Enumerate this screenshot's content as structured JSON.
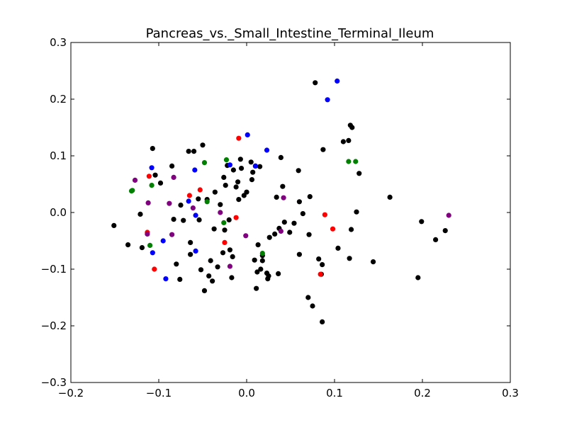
{
  "chart_data": {
    "type": "scatter",
    "title": "Pancreas_vs._Small_Intestine_Terminal_Ileum",
    "xlabel": "",
    "ylabel": "",
    "xlim": [
      -0.2,
      0.3
    ],
    "ylim": [
      -0.3,
      0.3
    ],
    "grid": false,
    "xticks": [
      -0.2,
      -0.1,
      0.0,
      0.1,
      0.2,
      0.3
    ],
    "yticks": [
      -0.3,
      -0.2,
      -0.1,
      0.0,
      0.1,
      0.2,
      0.3
    ],
    "xtick_labels": [
      "−0.2",
      "−0.1",
      "0.0",
      "0.1",
      "0.2",
      "0.3"
    ],
    "ytick_labels": [
      "−0.3",
      "−0.2",
      "−0.1",
      "0.0",
      "0.1",
      "0.2",
      "0.3"
    ],
    "series": [
      {
        "color": "#000000",
        "points": [
          [
            -0.151,
            -0.023
          ],
          [
            -0.135,
            -0.057
          ],
          [
            -0.121,
            -0.003
          ],
          [
            -0.119,
            -0.062
          ],
          [
            -0.107,
            0.113
          ],
          [
            -0.104,
            0.066
          ],
          [
            -0.098,
            0.052
          ],
          [
            -0.085,
            0.082
          ],
          [
            -0.083,
            -0.012
          ],
          [
            -0.08,
            -0.091
          ],
          [
            -0.076,
            -0.118
          ],
          [
            -0.075,
            0.013
          ],
          [
            -0.072,
            -0.014
          ],
          [
            -0.066,
            0.108
          ],
          [
            -0.064,
            -0.053
          ],
          [
            -0.064,
            -0.074
          ],
          [
            -0.06,
            0.108
          ],
          [
            -0.055,
            0.024
          ],
          [
            -0.054,
            -0.013
          ],
          [
            -0.052,
            -0.101
          ],
          [
            -0.05,
            0.119
          ],
          [
            -0.048,
            -0.138
          ],
          [
            -0.045,
            0.023
          ],
          [
            -0.043,
            -0.112
          ],
          [
            -0.041,
            -0.085
          ],
          [
            -0.039,
            -0.121
          ],
          [
            -0.037,
            -0.029
          ],
          [
            -0.036,
            0.036
          ],
          [
            -0.033,
            -0.096
          ],
          [
            -0.03,
            0.014
          ],
          [
            -0.027,
            -0.071
          ],
          [
            -0.026,
            0.062
          ],
          [
            -0.025,
            -0.031
          ],
          [
            -0.024,
            0.048
          ],
          [
            -0.022,
            0.083
          ],
          [
            -0.02,
            -0.013
          ],
          [
            -0.019,
            -0.066
          ],
          [
            -0.017,
            -0.115
          ],
          [
            -0.016,
            -0.078
          ],
          [
            -0.015,
            0.075
          ],
          [
            -0.012,
            0.045
          ],
          [
            -0.01,
            0.054
          ],
          [
            -0.009,
            0.023
          ],
          [
            -0.007,
            0.094
          ],
          [
            -0.006,
            0.078
          ],
          [
            -0.003,
            0.03
          ],
          [
            0.0,
            0.036
          ],
          [
            0.005,
            0.089
          ],
          [
            0.006,
            0.058
          ],
          [
            0.007,
            0.071
          ],
          [
            0.009,
            -0.084
          ],
          [
            0.01,
            0.082
          ],
          [
            0.011,
            -0.134
          ],
          [
            0.012,
            -0.105
          ],
          [
            0.013,
            -0.057
          ],
          [
            0.015,
            0.081
          ],
          [
            0.016,
            -0.1
          ],
          [
            0.018,
            -0.076
          ],
          [
            0.018,
            -0.085
          ],
          [
            0.023,
            -0.107
          ],
          [
            0.024,
            -0.117
          ],
          [
            0.025,
            -0.112
          ],
          [
            0.026,
            -0.044
          ],
          [
            0.032,
            -0.038
          ],
          [
            0.034,
            0.027
          ],
          [
            0.036,
            -0.108
          ],
          [
            0.037,
            -0.028
          ],
          [
            0.039,
            0.097
          ],
          [
            0.041,
            0.046
          ],
          [
            0.043,
            -0.017
          ],
          [
            0.049,
            -0.035
          ],
          [
            0.054,
            -0.019
          ],
          [
            0.059,
            0.074
          ],
          [
            0.06,
            -0.074
          ],
          [
            0.06,
            0.019
          ],
          [
            0.064,
            -0.002
          ],
          [
            0.07,
            -0.15
          ],
          [
            0.071,
            -0.039
          ],
          [
            0.072,
            0.028
          ],
          [
            0.075,
            -0.165
          ],
          [
            0.078,
            0.229
          ],
          [
            0.082,
            -0.082
          ],
          [
            0.085,
            -0.109
          ],
          [
            0.086,
            -0.092
          ],
          [
            0.086,
            -0.193
          ],
          [
            0.087,
            0.111
          ],
          [
            0.104,
            -0.063
          ],
          [
            0.11,
            0.125
          ],
          [
            0.116,
            0.127
          ],
          [
            0.117,
            -0.081
          ],
          [
            0.118,
            0.154
          ],
          [
            0.119,
            -0.03
          ],
          [
            0.12,
            0.15
          ],
          [
            0.125,
            0.001
          ],
          [
            0.128,
            0.069
          ],
          [
            0.144,
            -0.087
          ],
          [
            0.163,
            0.027
          ],
          [
            0.195,
            -0.115
          ],
          [
            0.199,
            -0.016
          ],
          [
            0.215,
            -0.048
          ],
          [
            0.226,
            -0.032
          ]
        ]
      },
      {
        "color": "#0000ff",
        "points": [
          [
            -0.108,
            0.079
          ],
          [
            -0.107,
            -0.071
          ],
          [
            -0.095,
            -0.05
          ],
          [
            -0.092,
            -0.117
          ],
          [
            -0.066,
            0.02
          ],
          [
            -0.059,
            0.075
          ],
          [
            -0.058,
            -0.005
          ],
          [
            -0.058,
            -0.068
          ],
          [
            -0.019,
            0.084
          ],
          [
            0.001,
            0.137
          ],
          [
            0.01,
            0.082
          ],
          [
            0.023,
            0.11
          ],
          [
            0.092,
            0.199
          ],
          [
            0.103,
            0.232
          ]
        ]
      },
      {
        "color": "#ff0000",
        "points": [
          [
            -0.113,
            -0.035
          ],
          [
            -0.111,
            0.064
          ],
          [
            -0.105,
            -0.1
          ],
          [
            -0.065,
            0.03
          ],
          [
            -0.053,
            0.04
          ],
          [
            -0.025,
            -0.053
          ],
          [
            -0.012,
            -0.009
          ],
          [
            -0.009,
            0.131
          ],
          [
            0.084,
            -0.109
          ],
          [
            0.089,
            -0.004
          ],
          [
            0.098,
            -0.029
          ]
        ]
      },
      {
        "color": "#008000",
        "points": [
          [
            -0.131,
            0.038
          ],
          [
            -0.13,
            0.039
          ],
          [
            -0.11,
            -0.058
          ],
          [
            -0.108,
            0.048
          ],
          [
            -0.048,
            0.088
          ],
          [
            -0.045,
            0.019
          ],
          [
            -0.026,
            -0.018
          ],
          [
            -0.023,
            0.093
          ],
          [
            0.018,
            -0.072
          ],
          [
            0.116,
            0.09
          ],
          [
            0.124,
            0.09
          ]
        ]
      },
      {
        "color": "#800080",
        "points": [
          [
            -0.127,
            0.057
          ],
          [
            -0.113,
            -0.038
          ],
          [
            -0.112,
            0.017
          ],
          [
            -0.088,
            0.016
          ],
          [
            -0.085,
            -0.039
          ],
          [
            -0.083,
            0.062
          ],
          [
            -0.061,
            0.008
          ],
          [
            -0.03,
            0.0
          ],
          [
            -0.019,
            -0.095
          ],
          [
            -0.001,
            -0.041
          ],
          [
            0.039,
            -0.033
          ],
          [
            0.042,
            0.026
          ],
          [
            0.23,
            -0.005
          ]
        ]
      }
    ]
  }
}
